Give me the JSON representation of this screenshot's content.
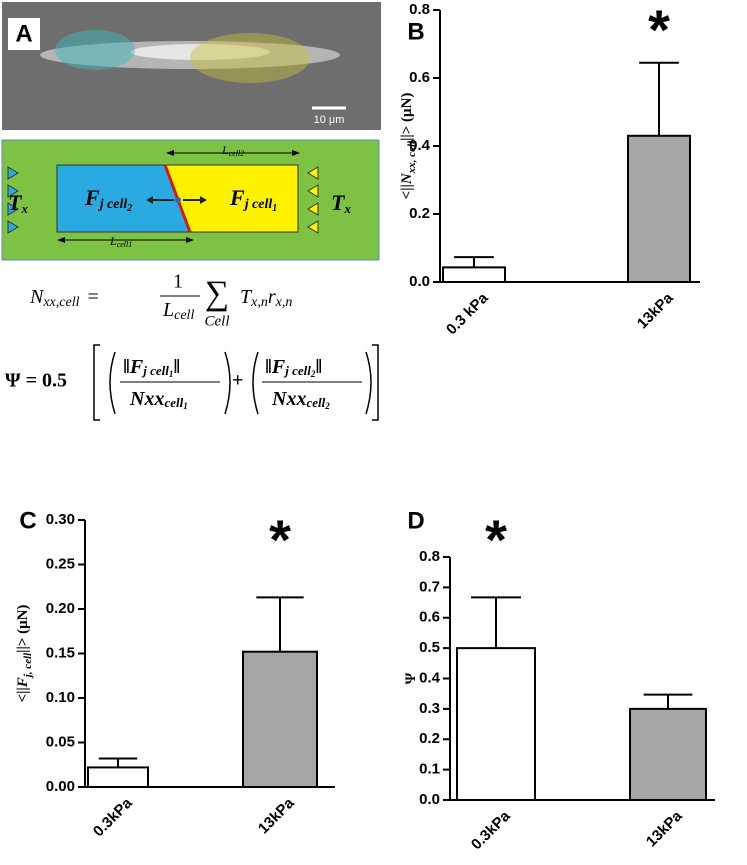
{
  "panel_a": {
    "label": "A",
    "scale_bar": "10 μm",
    "diagram": {
      "left_force": {
        "symbol": "T",
        "sub": "x"
      },
      "right_force": {
        "symbol": "T",
        "sub": "x"
      },
      "cell2": {
        "symbol": "F",
        "sub": "j cell",
        "index": "2"
      },
      "cell1": {
        "symbol": "F",
        "sub": "j cell",
        "index": "1"
      },
      "length2": {
        "symbol": "L",
        "sub": "cell2"
      },
      "length1": {
        "symbol": "L",
        "sub": "cell1"
      }
    },
    "equation1": {
      "lhs": "N",
      "lhs_sub": "xx,cell",
      "equals": "=",
      "numerator": "1",
      "denominator": "L",
      "denominator_sub": "cell",
      "sum": "∑",
      "sum_sub": "Cell",
      "term1": "T",
      "term1_sub": "x,n",
      "term2": "r",
      "term2_sub": "x,n"
    },
    "equation2": {
      "lhs": "Ψ = 0.5",
      "num1": "‖F",
      "num1_sub": "j cell",
      "num1_index": "1",
      "num1_close": "‖",
      "den1": "Nxx",
      "den1_sub": "cell",
      "den1_index": "1",
      "plus": "+",
      "num2": "‖F",
      "num2_sub": "j cell",
      "num2_index": "2",
      "num2_close": "‖",
      "den2": "Nxx",
      "den2_sub": "cell",
      "den2_index": "2"
    }
  },
  "chart_data": [
    {
      "type": "bar",
      "panel_label": "B",
      "ylabel": [
        {
          "text": "<||"
        },
        {
          "text": "N",
          "italic": true
        },
        {
          "text": "xx, cell",
          "italic": true,
          "sub": true
        },
        {
          "text": "||> (μN)"
        }
      ],
      "categories": [
        "0.3 kPa",
        "13kPa"
      ],
      "values": [
        0.043,
        0.43
      ],
      "errors": [
        0.03,
        0.215
      ],
      "colors": [
        "#ffffff",
        "#a6a6a6"
      ],
      "ylim": [
        0,
        0.8
      ],
      "yticks": [
        {
          "value": 0,
          "label": "0.0"
        },
        {
          "value": 0.2,
          "label": "0.2"
        },
        {
          "value": 0.4,
          "label": "0.4"
        },
        {
          "value": 0.6,
          "label": "0.6"
        },
        {
          "value": 0.8,
          "label": "0.8"
        }
      ],
      "annotation": "*",
      "annotation_category": 1
    },
    {
      "type": "bar",
      "panel_label": "C",
      "ylabel": [
        {
          "text": "<||"
        },
        {
          "text": "F",
          "italic": true
        },
        {
          "text": "j, cell",
          "italic": true,
          "sub": true
        },
        {
          "text": "||> (μN)"
        }
      ],
      "categories": [
        "0.3kPa",
        "13kPa"
      ],
      "values": [
        0.022,
        0.152
      ],
      "errors": [
        0.01,
        0.061
      ],
      "colors": [
        "#ffffff",
        "#a6a6a6"
      ],
      "ylim": [
        0,
        0.3
      ],
      "yticks": [
        {
          "value": 0,
          "label": "0.00"
        },
        {
          "value": 0.05,
          "label": "0.05"
        },
        {
          "value": 0.1,
          "label": "0.10"
        },
        {
          "value": 0.15,
          "label": "0.15"
        },
        {
          "value": 0.2,
          "label": "0.20"
        },
        {
          "value": 0.25,
          "label": "0.25"
        },
        {
          "value": 0.3,
          "label": "0.30"
        }
      ],
      "annotation": "*",
      "annotation_category": 1
    },
    {
      "type": "bar",
      "panel_label": "D",
      "ylabel": [
        {
          "text": "Ψ"
        }
      ],
      "categories": [
        "0.3kPa",
        "13kPa"
      ],
      "values": [
        0.5,
        0.3
      ],
      "errors": [
        0.167,
        0.047
      ],
      "colors": [
        "#ffffff",
        "#a6a6a6"
      ],
      "ylim": [
        0,
        0.8
      ],
      "yticks": [
        {
          "value": 0,
          "label": "0.0"
        },
        {
          "value": 0.1,
          "label": "0.1"
        },
        {
          "value": 0.2,
          "label": "0.2"
        },
        {
          "value": 0.3,
          "label": "0.3"
        },
        {
          "value": 0.4,
          "label": "0.4"
        },
        {
          "value": 0.5,
          "label": "0.5"
        },
        {
          "value": 0.6,
          "label": "0.6"
        },
        {
          "value": 0.7,
          "label": "0.7"
        },
        {
          "value": 0.8,
          "label": "0.8"
        }
      ],
      "annotation": "*",
      "annotation_category": 0
    }
  ]
}
